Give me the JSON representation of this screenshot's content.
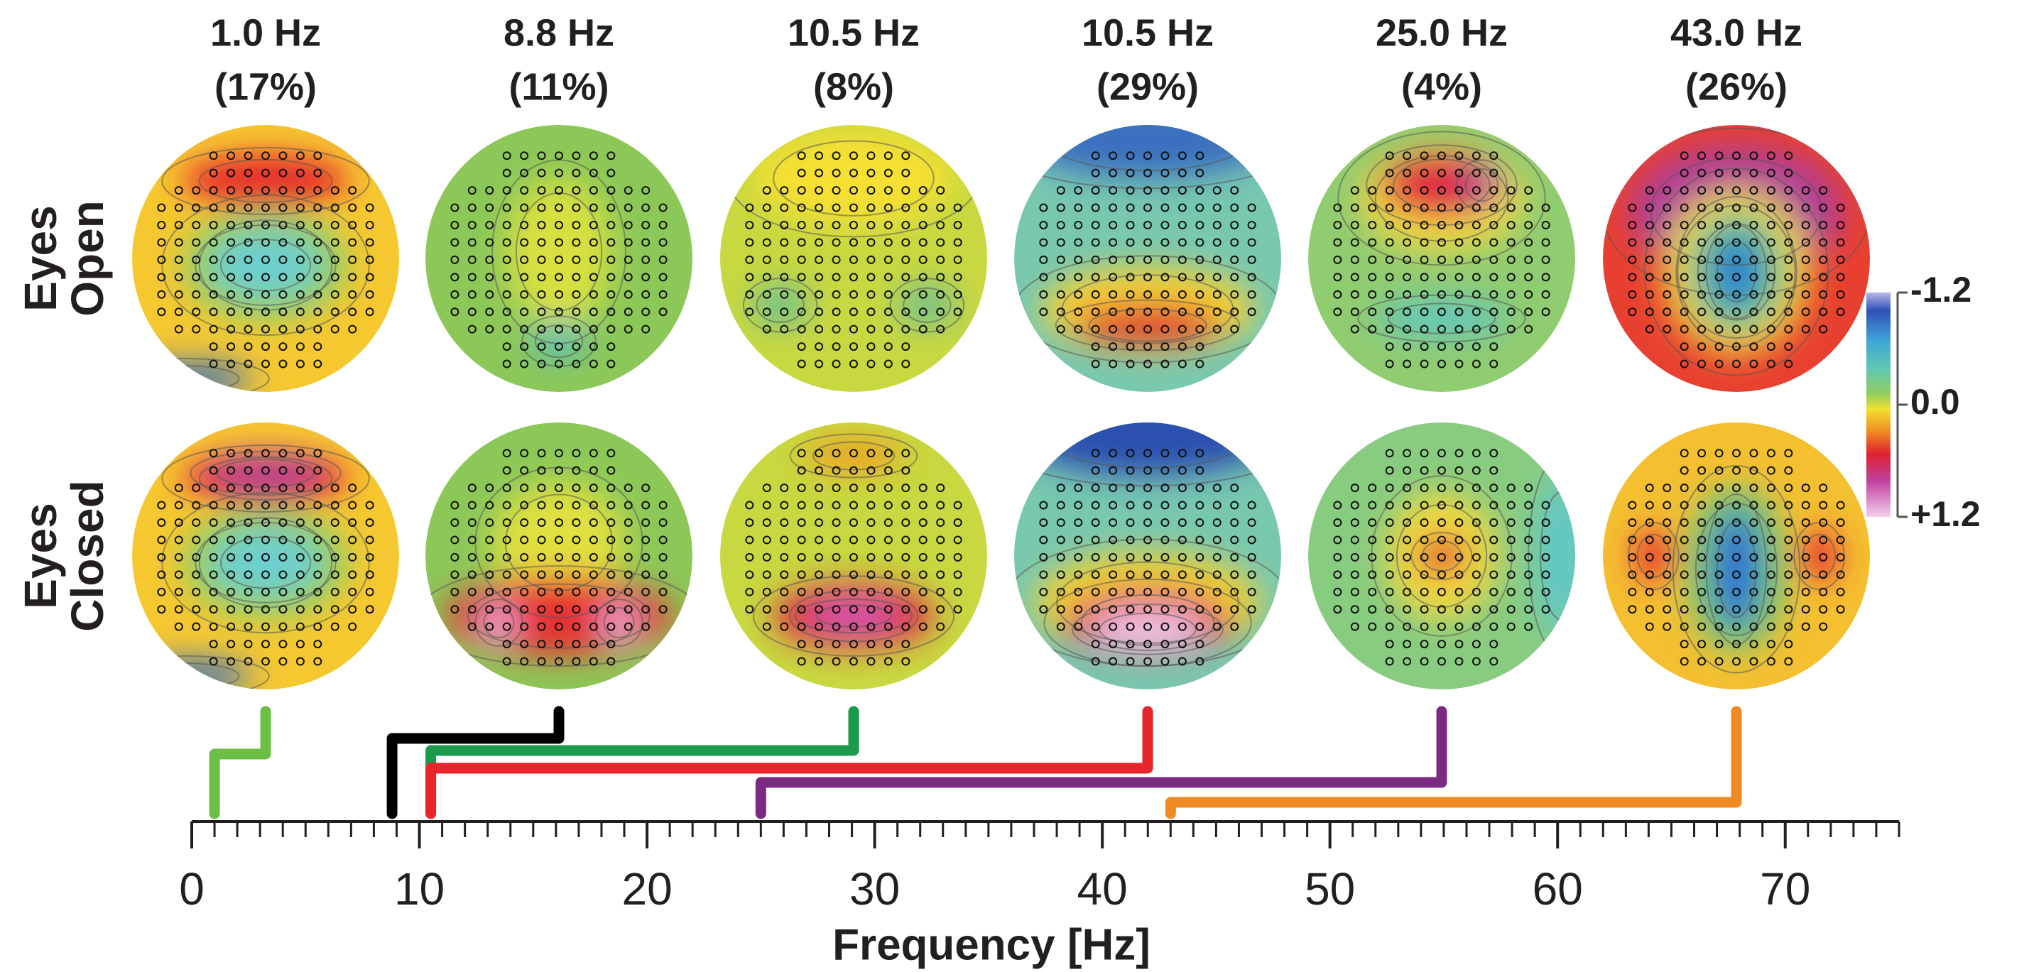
{
  "chart_data": {
    "type": "spectral-topography",
    "components": [
      {
        "frequency_label": "1.0 Hz",
        "share_label": "(17%)",
        "frequency": 1.0,
        "color": "#6cbf45"
      },
      {
        "frequency_label": "8.8 Hz",
        "share_label": "(11%)",
        "frequency": 8.8,
        "color": "#000000"
      },
      {
        "frequency_label": "10.5 Hz",
        "share_label": "(8%)",
        "frequency": 10.5,
        "color": "#1a9a4a"
      },
      {
        "frequency_label": "10.5 Hz",
        "share_label": "(29%)",
        "frequency": 10.5,
        "color": "#e8252a"
      },
      {
        "frequency_label": "25.0 Hz",
        "share_label": "(4%)",
        "frequency": 25.0,
        "color": "#7b2a82"
      },
      {
        "frequency_label": "43.0 Hz",
        "share_label": "(26%)",
        "frequency": 43.0,
        "color": "#f08a24"
      }
    ],
    "rows": [
      [
        "Eyes",
        "Open"
      ],
      [
        "Eyes",
        "Closed"
      ]
    ],
    "xlabel": "Frequency [Hz]",
    "xlim": [
      0,
      75
    ],
    "xticks": [
      0,
      10,
      20,
      30,
      40,
      50,
      60,
      70
    ],
    "xminor_step": 1,
    "colorbar": {
      "lim": [
        -1.2,
        1.2
      ],
      "ticks": [
        -1.2,
        {
          "value": 0,
          "label": "0.0"
        },
        {
          "value": 1.2,
          "label": "+1.2"
        }
      ]
    }
  }
}
